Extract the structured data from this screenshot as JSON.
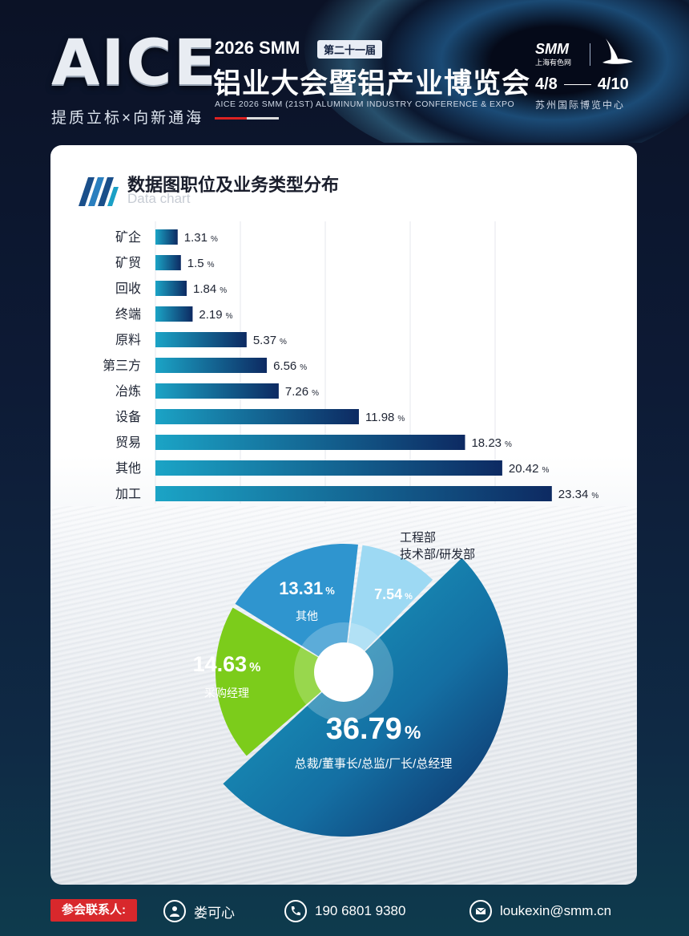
{
  "header": {
    "brand": "AICE",
    "slogan": "提质立标×向新通海",
    "event_year": "2026 SMM",
    "event_badge": "第二十一届",
    "event_title": "铝业大会暨铝产业博览会",
    "event_subtitle": "AICE 2026 SMM (21ST) ALUMINUM INDUSTRY CONFERENCE & EXPO",
    "logo_text": "SMM",
    "logo_sub": "上海有色网",
    "date_start": "4/8",
    "date_end": "4/10",
    "venue": "苏州国际博览中心"
  },
  "section": {
    "title": "数据图职位及业务类型分布",
    "subtitle": "Data chart"
  },
  "chart_data": [
    {
      "type": "bar",
      "orientation": "horizontal",
      "categories": [
        "矿企",
        "矿贸",
        "回收",
        "终端",
        "原料",
        "第三方",
        "冶炼",
        "设备",
        "贸易",
        "其他",
        "加工"
      ],
      "values": [
        1.31,
        1.5,
        1.84,
        2.19,
        5.37,
        6.56,
        7.26,
        11.98,
        18.23,
        20.42,
        23.34
      ],
      "unit": "%",
      "grid": true,
      "colors": [
        "#1ba4c6",
        "#0d2a62"
      ]
    },
    {
      "type": "pie",
      "labels": [
        "总裁/董事长/总监/厂长/总经理",
        "采购经理",
        "其他",
        "工程部\n技术部/研发部"
      ],
      "values": [
        36.79,
        14.63,
        13.31,
        7.54
      ],
      "unit": "%",
      "colors": [
        "#1b8fb8",
        "#7ccc1b",
        "#2f95cf",
        "#9dd9f3"
      ]
    }
  ],
  "footer": {
    "contact_label": "参会联系人:",
    "name": "娄可心",
    "phone": "190 6801 9380",
    "email": "loukexin@smm.cn"
  }
}
